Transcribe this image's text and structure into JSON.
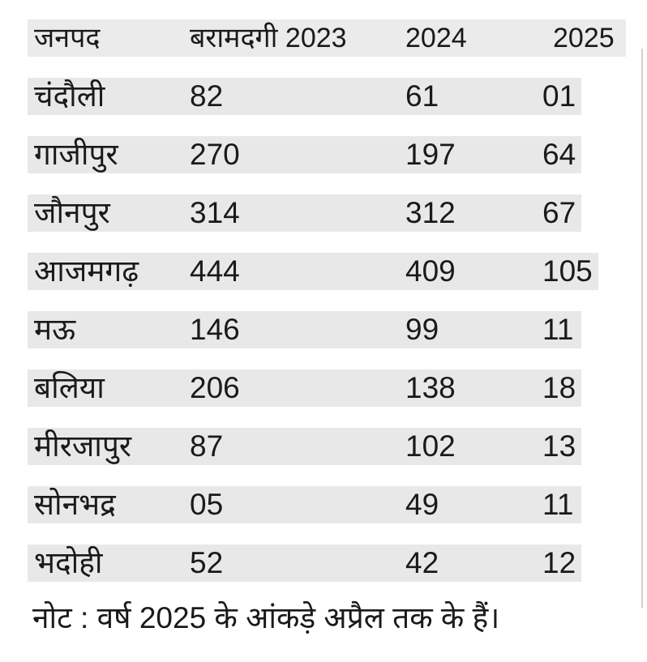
{
  "table": {
    "headers": [
      "जनपद",
      "बरामदगी 2023",
      "2024",
      "2025"
    ],
    "rows": [
      [
        "चंदौली",
        "82",
        "61",
        "01"
      ],
      [
        "गाजीपुर",
        "270",
        "197",
        "64"
      ],
      [
        "जौनपुर",
        "314",
        "312",
        "67"
      ],
      [
        "आजमगढ़",
        "444",
        "409",
        "105"
      ],
      [
        "मऊ",
        "146",
        "99",
        "11"
      ],
      [
        "बलिया",
        "206",
        "138",
        "18"
      ],
      [
        "मीरजापुर",
        "87",
        "102",
        "13"
      ],
      [
        "सोनभद्र",
        "05",
        "49",
        "11"
      ],
      [
        "भदोही",
        "52",
        "42",
        "12"
      ]
    ]
  },
  "note": "नोट : वर्ष 2025 के आंकड़े अप्रैल तक के हैं।"
}
